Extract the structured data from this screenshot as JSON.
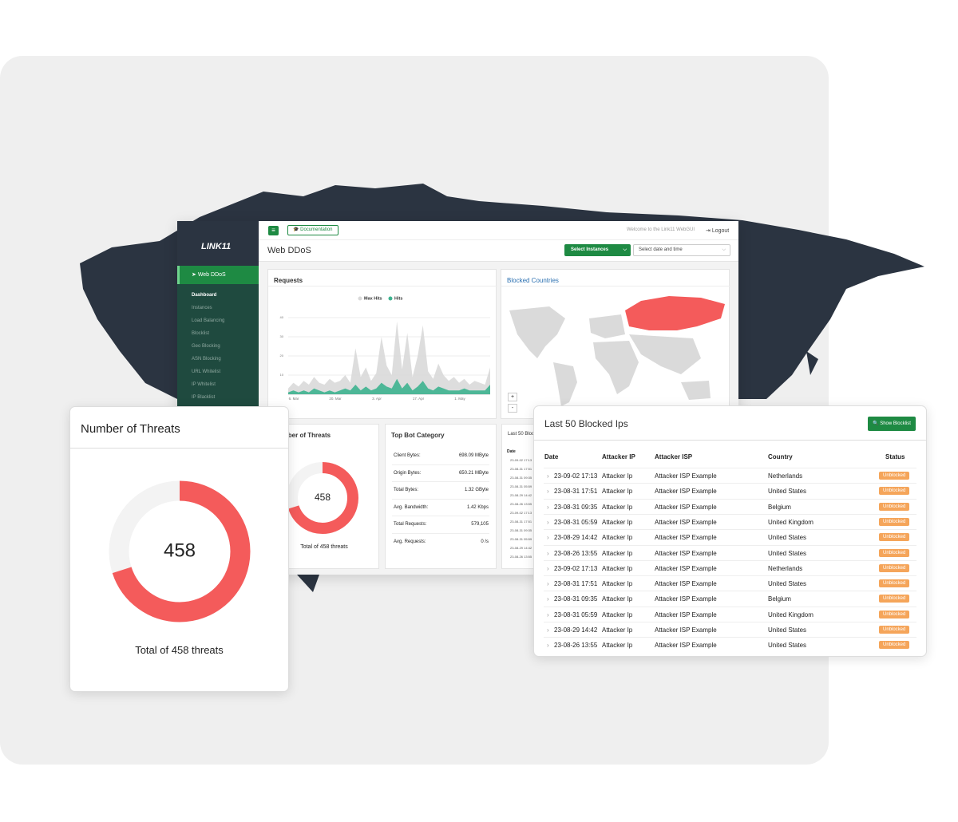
{
  "sidebar": {
    "logo": "LINK11",
    "active": "Web DDoS",
    "menu": [
      "Dashboard",
      "Instances",
      "Load Balancing",
      "Blocklist",
      "Geo Blocking",
      "ASN Blocking",
      "URL Whitelist",
      "IP Whitelist",
      "IP Blacklist"
    ]
  },
  "topbar": {
    "documentation": "Documentation",
    "welcome": "Welcome to the Link11 WebGUI",
    "logout": "Logout"
  },
  "page": {
    "title": "Web DDoS",
    "select_instances": "Select Instances",
    "date_picker": "Select date and time"
  },
  "requests": {
    "title": "Requests",
    "ylim": [
      0,
      40
    ],
    "yticks": [
      10,
      20,
      30,
      40
    ],
    "xlabels": [
      "6. Mar",
      "20. Mar",
      "3. Apr",
      "17. Apr",
      "1. May"
    ],
    "series": [
      {
        "name": "Max Hits",
        "color": "#d9d9d9",
        "values": [
          3,
          6,
          4,
          7,
          5,
          9,
          6,
          5,
          8,
          6,
          7,
          10,
          6,
          24,
          9,
          14,
          7,
          11,
          30,
          15,
          10,
          38,
          13,
          32,
          9,
          20,
          36,
          12,
          8,
          16,
          10,
          7,
          9,
          6,
          8,
          5,
          7,
          6,
          5,
          14
        ]
      },
      {
        "name": "Hits",
        "color": "#3db38f",
        "values": [
          1,
          2,
          1,
          2,
          1,
          3,
          2,
          1,
          2,
          1,
          2,
          3,
          2,
          5,
          2,
          4,
          2,
          3,
          6,
          4,
          3,
          8,
          3,
          6,
          2,
          4,
          7,
          3,
          2,
          4,
          3,
          2,
          2,
          2,
          3,
          2,
          2,
          2,
          2,
          5
        ]
      }
    ]
  },
  "blocked_countries": {
    "title": "Blocked Countries",
    "zoom": [
      "+",
      "-"
    ]
  },
  "threats": {
    "title": "Number of Threats",
    "value": 458,
    "share": 70,
    "color": "#f45b5b",
    "caption": "Total of 458 threats"
  },
  "bot_category": {
    "title": "Top Bot Category",
    "rows": [
      [
        "Client Bytes:",
        "698.09 MByte"
      ],
      [
        "Origin Bytes:",
        "650.21 MByte"
      ],
      [
        "Total Bytes:",
        "1.32 GByte"
      ],
      [
        "Avg. Bandwidth:",
        "1.42 Kbps"
      ],
      [
        "Total Requests:",
        "579,105"
      ],
      [
        "Avg. Requests:",
        "0 /s"
      ]
    ]
  },
  "blocked_ips": {
    "title": "Last 50 Blocked Ips",
    "button": "Show Blocklist",
    "columns": [
      "Date",
      "Attacker IP",
      "Attacker ISP",
      "Country",
      "Status"
    ],
    "rows": [
      [
        "23-09-02 17:13",
        "Attacker Ip",
        "Attacker ISP Example",
        "Netherlands",
        "Unblocked"
      ],
      [
        "23-08-31 17:51",
        "Attacker Ip",
        "Attacker ISP Example",
        "United States",
        "Unblocked"
      ],
      [
        "23-08-31 09:35",
        "Attacker Ip",
        "Attacker ISP Example",
        "Belgium",
        "Unblocked"
      ],
      [
        "23-08-31 05:59",
        "Attacker Ip",
        "Attacker ISP Example",
        "United Kingdom",
        "Unblocked"
      ],
      [
        "23-08-29 14:42",
        "Attacker Ip",
        "Attacker ISP Example",
        "United States",
        "Unblocked"
      ],
      [
        "23-08-26 13:55",
        "Attacker Ip",
        "Attacker ISP Example",
        "United States",
        "Unblocked"
      ],
      [
        "23-09-02 17:13",
        "Attacker Ip",
        "Attacker ISP Example",
        "Netherlands",
        "Unblocked"
      ],
      [
        "23-08-31 17:51",
        "Attacker Ip",
        "Attacker ISP Example",
        "United States",
        "Unblocked"
      ],
      [
        "23-08-31 09:35",
        "Attacker Ip",
        "Attacker ISP Example",
        "Belgium",
        "Unblocked"
      ],
      [
        "23-08-31 05:59",
        "Attacker Ip",
        "Attacker ISP Example",
        "United Kingdom",
        "Unblocked"
      ],
      [
        "23-08-29 14:42",
        "Attacker Ip",
        "Attacker ISP Example",
        "United States",
        "Unblocked"
      ],
      [
        "23-08-26 13:55",
        "Attacker Ip",
        "Attacker ISP Example",
        "United States",
        "Unblocked"
      ]
    ]
  }
}
